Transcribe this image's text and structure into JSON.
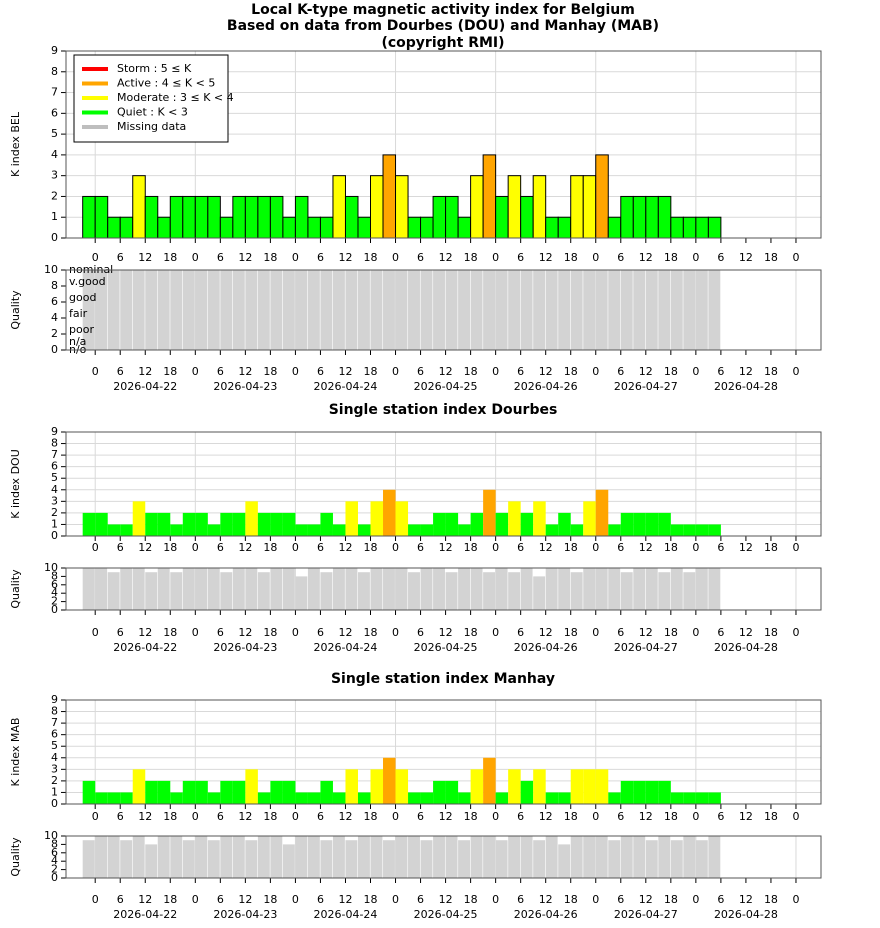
{
  "chart_data": [
    {
      "type": "bar",
      "title": "Local K-type magnetic activity index for Belgium",
      "subtitle": "Based on data from Dourbes (DOU) and Manhay (MAB)",
      "annotation": "(copyright RMI)",
      "ylabel": "K index BEL",
      "outline": true,
      "legend": "top-left",
      "levels": [
        {
          "name": "Storm : 5 ≤ K",
          "color": "#ff0000",
          "min": 5
        },
        {
          "name": "Active : 4 ≤ K < 5",
          "color": "#ffa500",
          "min": 4
        },
        {
          "name": "Moderate : 3 ≤ K < 4",
          "color": "#ffff00",
          "min": 3
        },
        {
          "name": "Quiet : K < 3",
          "color": "#00ff00",
          "min": 0
        },
        {
          "name": "Missing data",
          "color": "#bebebe"
        }
      ],
      "x": [
        -3,
        0,
        3,
        6,
        9,
        12,
        15,
        18,
        21,
        24,
        27,
        30,
        33,
        36,
        39,
        42,
        45,
        48,
        51,
        54,
        57,
        60,
        63,
        66,
        69,
        72,
        75,
        78,
        81,
        84,
        87,
        90,
        93,
        96,
        99,
        102,
        105,
        108,
        111,
        114,
        117,
        120,
        123,
        126,
        129,
        132,
        135,
        138,
        141,
        144,
        147
      ],
      "values": [
        2,
        2,
        1,
        1,
        3,
        2,
        1,
        2,
        2,
        2,
        2,
        1,
        2,
        2,
        2,
        2,
        1,
        2,
        1,
        1,
        3,
        2,
        1,
        3,
        4,
        3,
        1,
        1,
        2,
        2,
        1,
        3,
        4,
        2,
        3,
        2,
        3,
        1,
        1,
        3,
        3,
        4,
        1,
        2,
        2,
        2,
        2,
        1,
        1,
        1,
        1
      ],
      "xlim": [
        -7,
        174
      ],
      "ylim": [
        0,
        9
      ],
      "yticks": [
        0,
        1,
        2,
        3,
        4,
        5,
        6,
        7,
        8,
        9
      ],
      "xticks": [
        0,
        6,
        12,
        18,
        {
          "value": 24,
          "label": "0"
        },
        {
          "value": 30,
          "label": "6"
        },
        {
          "value": 36,
          "label": "12"
        },
        {
          "value": 42,
          "label": "18"
        },
        {
          "value": 48,
          "label": "0"
        },
        {
          "value": 54,
          "label": "6"
        },
        {
          "value": 60,
          "label": "12"
        },
        {
          "value": 66,
          "label": "18"
        },
        {
          "value": 72,
          "label": "0"
        },
        {
          "value": 78,
          "label": "6"
        },
        {
          "value": 84,
          "label": "12"
        },
        {
          "value": 90,
          "label": "18"
        },
        {
          "value": 96,
          "label": "0"
        },
        {
          "value": 102,
          "label": "6"
        },
        {
          "value": 108,
          "label": "12"
        },
        {
          "value": 114,
          "label": "18"
        },
        {
          "value": 120,
          "label": "0"
        },
        {
          "value": 126,
          "label": "6"
        },
        {
          "value": 132,
          "label": "12"
        },
        {
          "value": 138,
          "label": "18"
        },
        {
          "value": 144,
          "label": "0"
        },
        {
          "value": 150,
          "label": "6"
        },
        {
          "value": 156,
          "label": "12"
        },
        {
          "value": 162,
          "label": "18"
        },
        {
          "value": 168,
          "label": "0"
        }
      ],
      "date_ticks": [
        {
          "value": 12,
          "label": "2026-04-22"
        },
        {
          "value": 36,
          "label": "2026-04-23"
        },
        {
          "value": 60,
          "label": "2026-04-24"
        },
        {
          "value": 84,
          "label": "2026-04-25"
        },
        {
          "value": 108,
          "label": "2026-04-26"
        },
        {
          "value": 132,
          "label": "2026-04-27"
        },
        {
          "value": 156,
          "label": "2026-04-28"
        }
      ],
      "quality": {
        "ylabel": "Quality",
        "ylim": [
          0,
          10
        ],
        "yticks": [
          0,
          2,
          4,
          6,
          8,
          10
        ],
        "color": "#d3d3d3",
        "level_labels": [
          {
            "value": 10,
            "label": "nominal"
          },
          {
            "value": 8.5,
            "label": "v.good"
          },
          {
            "value": 6.5,
            "label": "good"
          },
          {
            "value": 4.5,
            "label": "fair"
          },
          {
            "value": 2.5,
            "label": "poor"
          },
          {
            "value": 1,
            "label": "n/a"
          },
          {
            "value": 0,
            "label": "n/o"
          }
        ],
        "values": [
          10,
          10,
          10,
          10,
          10,
          10,
          10,
          10,
          10,
          10,
          10,
          10,
          10,
          10,
          10,
          10,
          10,
          10,
          10,
          10,
          10,
          10,
          10,
          10,
          10,
          10,
          10,
          10,
          10,
          10,
          10,
          10,
          10,
          10,
          10,
          10,
          10,
          10,
          10,
          10,
          10,
          10,
          10,
          10,
          10,
          10,
          10,
          10,
          10,
          10,
          10
        ]
      }
    },
    {
      "type": "bar",
      "title": "Single station index Dourbes",
      "ylabel": "K index DOU",
      "outline": false,
      "x": [
        -3,
        0,
        3,
        6,
        9,
        12,
        15,
        18,
        21,
        24,
        27,
        30,
        33,
        36,
        39,
        42,
        45,
        48,
        51,
        54,
        57,
        60,
        63,
        66,
        69,
        72,
        75,
        78,
        81,
        84,
        87,
        90,
        93,
        96,
        99,
        102,
        105,
        108,
        111,
        114,
        117,
        120,
        123,
        126,
        129,
        132,
        135,
        138,
        141,
        144,
        147
      ],
      "values": [
        2,
        2,
        1,
        1,
        3,
        2,
        2,
        1,
        2,
        2,
        1,
        2,
        2,
        3,
        2,
        2,
        2,
        1,
        1,
        2,
        1,
        3,
        1,
        3,
        4,
        3,
        1,
        1,
        2,
        2,
        1,
        2,
        4,
        2,
        3,
        2,
        3,
        1,
        2,
        1,
        3,
        4,
        1,
        2,
        2,
        2,
        2,
        1,
        1,
        1,
        1
      ],
      "xlim": [
        -7,
        174
      ],
      "ylim": [
        0,
        9
      ],
      "yticks": [
        0,
        1,
        2,
        3,
        4,
        5,
        6,
        7,
        8,
        9
      ],
      "xticks": [
        0,
        6,
        12,
        18,
        {
          "value": 24,
          "label": "0"
        },
        {
          "value": 30,
          "label": "6"
        },
        {
          "value": 36,
          "label": "12"
        },
        {
          "value": 42,
          "label": "18"
        },
        {
          "value": 48,
          "label": "0"
        },
        {
          "value": 54,
          "label": "6"
        },
        {
          "value": 60,
          "label": "12"
        },
        {
          "value": 66,
          "label": "18"
        },
        {
          "value": 72,
          "label": "0"
        },
        {
          "value": 78,
          "label": "6"
        },
        {
          "value": 84,
          "label": "12"
        },
        {
          "value": 90,
          "label": "18"
        },
        {
          "value": 96,
          "label": "0"
        },
        {
          "value": 102,
          "label": "6"
        },
        {
          "value": 108,
          "label": "12"
        },
        {
          "value": 114,
          "label": "18"
        },
        {
          "value": 120,
          "label": "0"
        },
        {
          "value": 126,
          "label": "6"
        },
        {
          "value": 132,
          "label": "12"
        },
        {
          "value": 138,
          "label": "18"
        },
        {
          "value": 144,
          "label": "0"
        },
        {
          "value": 150,
          "label": "6"
        },
        {
          "value": 156,
          "label": "12"
        },
        {
          "value": 162,
          "label": "18"
        },
        {
          "value": 168,
          "label": "0"
        }
      ],
      "date_ticks": [
        {
          "value": 12,
          "label": "2026-04-22"
        },
        {
          "value": 36,
          "label": "2026-04-23"
        },
        {
          "value": 60,
          "label": "2026-04-24"
        },
        {
          "value": 84,
          "label": "2026-04-25"
        },
        {
          "value": 108,
          "label": "2026-04-26"
        },
        {
          "value": 132,
          "label": "2026-04-27"
        },
        {
          "value": 156,
          "label": "2026-04-28"
        }
      ],
      "quality": {
        "ylabel": "Quality",
        "ylim": [
          0,
          10
        ],
        "yticks": [
          0,
          2,
          4,
          6,
          8,
          10
        ],
        "color": "#d3d3d3",
        "values": [
          10,
          10,
          9,
          10,
          10,
          9,
          10,
          9,
          10,
          10,
          10,
          9,
          10,
          10,
          9,
          10,
          10,
          8,
          10,
          9,
          10,
          10,
          9,
          10,
          10,
          10,
          9,
          10,
          10,
          9,
          10,
          10,
          9,
          10,
          9,
          10,
          8,
          10,
          10,
          9,
          10,
          10,
          10,
          9,
          10,
          10,
          9,
          10,
          9,
          10,
          10
        ]
      }
    },
    {
      "type": "bar",
      "title": "Single station index Manhay",
      "ylabel": "K index MAB",
      "outline": false,
      "x": [
        -3,
        0,
        3,
        6,
        9,
        12,
        15,
        18,
        21,
        24,
        27,
        30,
        33,
        36,
        39,
        42,
        45,
        48,
        51,
        54,
        57,
        60,
        63,
        66,
        69,
        72,
        75,
        78,
        81,
        84,
        87,
        90,
        93,
        96,
        99,
        102,
        105,
        108,
        111,
        114,
        117,
        120,
        123,
        126,
        129,
        132,
        135,
        138,
        141,
        144,
        147
      ],
      "values": [
        2,
        1,
        1,
        1,
        3,
        2,
        2,
        1,
        2,
        2,
        1,
        2,
        2,
        3,
        1,
        2,
        2,
        1,
        1,
        2,
        1,
        3,
        1,
        3,
        4,
        3,
        1,
        1,
        2,
        2,
        1,
        3,
        4,
        1,
        3,
        2,
        3,
        1,
        1,
        3,
        3,
        3,
        1,
        2,
        2,
        2,
        2,
        1,
        1,
        1,
        1
      ],
      "xlim": [
        -7,
        174
      ],
      "ylim": [
        0,
        9
      ],
      "yticks": [
        0,
        1,
        2,
        3,
        4,
        5,
        6,
        7,
        8,
        9
      ],
      "xticks": [
        0,
        6,
        12,
        18,
        {
          "value": 24,
          "label": "0"
        },
        {
          "value": 30,
          "label": "6"
        },
        {
          "value": 36,
          "label": "12"
        },
        {
          "value": 42,
          "label": "18"
        },
        {
          "value": 48,
          "label": "0"
        },
        {
          "value": 54,
          "label": "6"
        },
        {
          "value": 60,
          "label": "12"
        },
        {
          "value": 66,
          "label": "18"
        },
        {
          "value": 72,
          "label": "0"
        },
        {
          "value": 78,
          "label": "6"
        },
        {
          "value": 84,
          "label": "12"
        },
        {
          "value": 90,
          "label": "18"
        },
        {
          "value": 96,
          "label": "0"
        },
        {
          "value": 102,
          "label": "6"
        },
        {
          "value": 108,
          "label": "12"
        },
        {
          "value": 114,
          "label": "18"
        },
        {
          "value": 120,
          "label": "0"
        },
        {
          "value": 126,
          "label": "6"
        },
        {
          "value": 132,
          "label": "12"
        },
        {
          "value": 138,
          "label": "18"
        },
        {
          "value": 144,
          "label": "0"
        },
        {
          "value": 150,
          "label": "6"
        },
        {
          "value": 156,
          "label": "12"
        },
        {
          "value": 162,
          "label": "18"
        },
        {
          "value": 168,
          "label": "0"
        }
      ],
      "date_ticks": [
        {
          "value": 12,
          "label": "2026-04-22"
        },
        {
          "value": 36,
          "label": "2026-04-23"
        },
        {
          "value": 60,
          "label": "2026-04-24"
        },
        {
          "value": 84,
          "label": "2026-04-25"
        },
        {
          "value": 108,
          "label": "2026-04-26"
        },
        {
          "value": 132,
          "label": "2026-04-27"
        },
        {
          "value": 156,
          "label": "2026-04-28"
        }
      ],
      "quality": {
        "ylabel": "Quality",
        "ylim": [
          0,
          10
        ],
        "yticks": [
          0,
          2,
          4,
          6,
          8,
          10
        ],
        "color": "#d3d3d3",
        "values": [
          9,
          10,
          10,
          9,
          10,
          8,
          10,
          10,
          9,
          10,
          9,
          10,
          10,
          9,
          10,
          10,
          8,
          10,
          10,
          9,
          10,
          9,
          10,
          10,
          9,
          10,
          10,
          9,
          10,
          10,
          9,
          10,
          10,
          9,
          10,
          10,
          9,
          10,
          8,
          10,
          10,
          10,
          9,
          10,
          10,
          9,
          10,
          9,
          10,
          9,
          10
        ]
      }
    }
  ]
}
